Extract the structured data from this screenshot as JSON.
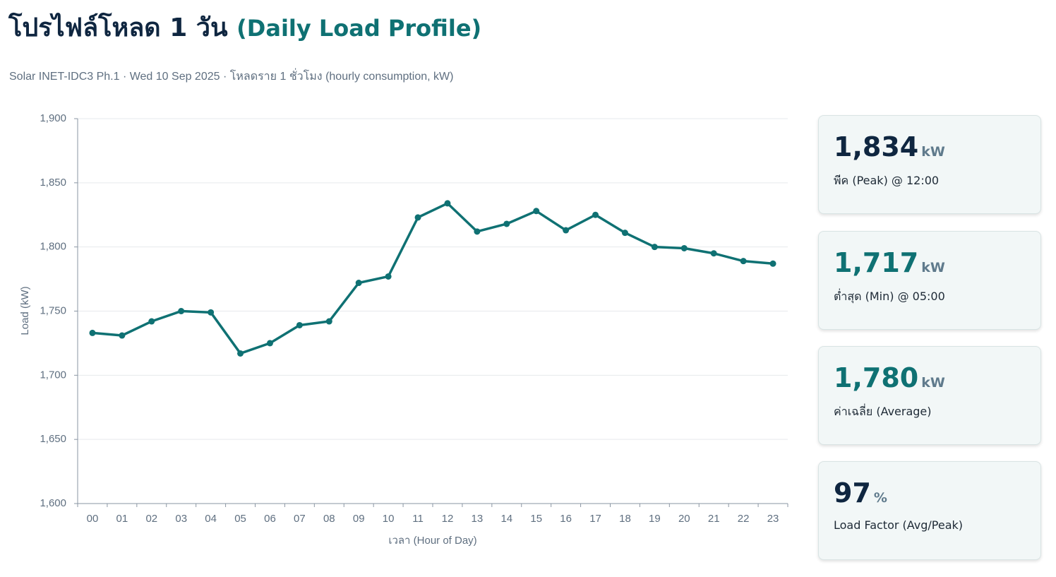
{
  "header": {
    "title": "โปรไฟล์โหลด 1 วัน",
    "title_en": "(Daily Load Profile)",
    "subtitle": "Solar INET-IDC3 Ph.1 · Wed 10 Sep 2025 · โหลดราย 1 ชั่วโมง (hourly consumption, kW)"
  },
  "chart_data": {
    "type": "line",
    "ylabel": "Load (kW)",
    "xlabel": "เวลา (Hour of Day)",
    "categories": [
      "00",
      "01",
      "02",
      "03",
      "04",
      "05",
      "06",
      "07",
      "08",
      "09",
      "10",
      "11",
      "12",
      "13",
      "14",
      "15",
      "16",
      "17",
      "18",
      "19",
      "20",
      "21",
      "22",
      "23"
    ],
    "series": [
      {
        "color": "#0f7173",
        "values": [
          1733,
          1731,
          1742,
          1750,
          1749,
          1717,
          1725,
          1739,
          1742,
          1772,
          1777,
          1823,
          1834,
          1812,
          1818,
          1828,
          1813,
          1825,
          1811,
          1800,
          1799,
          1795,
          1789,
          1787
        ]
      }
    ],
    "ylim": [
      1600,
      1900
    ],
    "yticks": [
      {
        "value": 1600,
        "label": "1,600"
      },
      {
        "value": 1650,
        "label": "1,650"
      },
      {
        "value": 1700,
        "label": "1,700"
      },
      {
        "value": 1750,
        "label": "1,750"
      },
      {
        "value": 1800,
        "label": "1,800"
      },
      {
        "value": 1850,
        "label": "1,850"
      },
      {
        "value": 1900,
        "label": "1,900"
      }
    ],
    "grid": true
  },
  "cards": [
    {
      "value": "1,834",
      "unit": "kW",
      "label": "พีค (Peak) @ 12:00",
      "color": "#0f2640"
    },
    {
      "value": "1,717",
      "unit": "kW",
      "label": "ต่ำสุด (Min) @ 05:00",
      "color": "#0f7173"
    },
    {
      "value": "1,780",
      "unit": "kW",
      "label": "ค่าเฉลี่ย (Average)",
      "color": "#0f7173"
    },
    {
      "value": "97",
      "unit": "%",
      "label": "Load Factor (Avg/Peak)",
      "color": "#0f2640"
    }
  ]
}
